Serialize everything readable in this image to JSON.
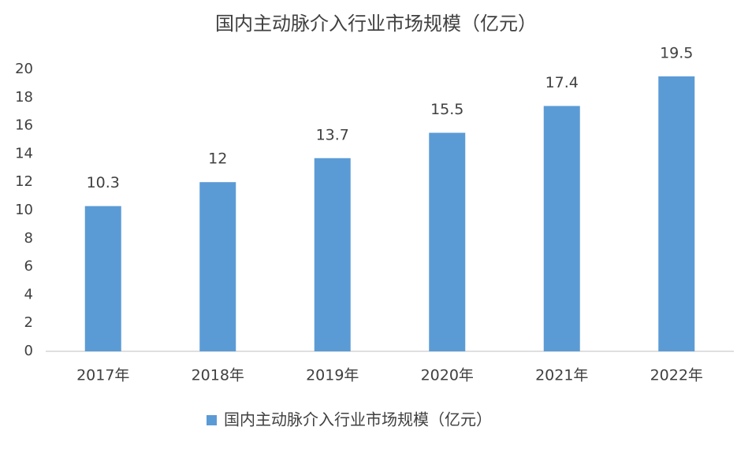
{
  "chart_data": {
    "type": "bar",
    "title": "国内主动脉介入行业市场规模（亿元）",
    "categories": [
      "2017年",
      "2018年",
      "2019年",
      "2020年",
      "2021年",
      "2022年"
    ],
    "series": [
      {
        "name": "国内主动脉介入行业市场规模（亿元）",
        "color": "#5b9bd5",
        "values": [
          10.3,
          12,
          13.7,
          15.5,
          17.4,
          19.5
        ]
      }
    ],
    "ylim": [
      0,
      20
    ],
    "yticks": [
      0,
      2,
      4,
      6,
      8,
      10,
      12,
      14,
      16,
      18,
      20
    ],
    "grid": false,
    "legend": "bottom"
  }
}
